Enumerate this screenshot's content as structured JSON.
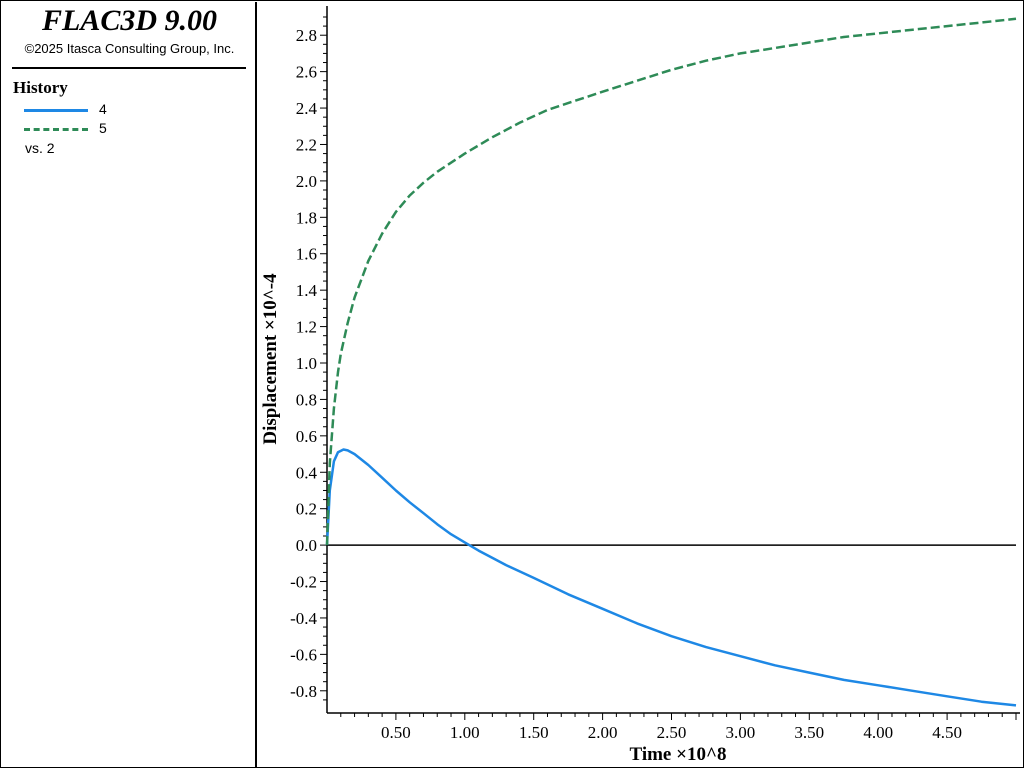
{
  "app": {
    "title": "FLAC3D 9.00",
    "copyright": "©2025 Itasca Consulting Group, Inc."
  },
  "legend": {
    "title": "History",
    "vs_label": "vs. 2",
    "items": [
      {
        "label": "4",
        "color": "#1e88e5",
        "style": "solid"
      },
      {
        "label": "5",
        "color": "#2e8b57",
        "style": "dashed"
      }
    ]
  },
  "chart_data": {
    "type": "line",
    "xlabel": "Time ×10^8",
    "ylabel": "Displacement ×10^-4",
    "xlim": [
      0,
      5.0
    ],
    "ylim": [
      -0.9,
      2.9
    ],
    "xticks": [
      "0.50",
      "1.00",
      "1.50",
      "2.00",
      "2.50",
      "3.00",
      "3.50",
      "4.00",
      "4.50"
    ],
    "yticks": [
      "2.8",
      "2.6",
      "2.4",
      "2.2",
      "2.0",
      "1.8",
      "1.6",
      "1.4",
      "1.2",
      "1.0",
      "0.8",
      "0.6",
      "0.4",
      "0.2",
      "0.0",
      "-0.2",
      "-0.4",
      "-0.6",
      "-0.8"
    ],
    "zero_line": true,
    "grid": false,
    "series": [
      {
        "name": "4",
        "color": "#1e88e5",
        "style": "solid",
        "x": [
          0,
          0.02,
          0.05,
          0.08,
          0.12,
          0.15,
          0.2,
          0.3,
          0.4,
          0.5,
          0.6,
          0.7,
          0.8,
          0.9,
          1.0,
          1.1,
          1.2,
          1.3,
          1.5,
          1.75,
          2.0,
          2.25,
          2.5,
          2.75,
          3.0,
          3.25,
          3.5,
          3.75,
          4.0,
          4.25,
          4.5,
          4.75,
          5.0
        ],
        "values": [
          0,
          0.3,
          0.46,
          0.51,
          0.525,
          0.52,
          0.5,
          0.44,
          0.37,
          0.3,
          0.235,
          0.175,
          0.115,
          0.06,
          0.015,
          -0.03,
          -0.07,
          -0.11,
          -0.18,
          -0.27,
          -0.35,
          -0.43,
          -0.5,
          -0.56,
          -0.61,
          -0.66,
          -0.7,
          -0.74,
          -0.77,
          -0.8,
          -0.83,
          -0.86,
          -0.88
        ]
      },
      {
        "name": "5",
        "color": "#2e8b57",
        "style": "dashed",
        "x": [
          0,
          0.02,
          0.05,
          0.08,
          0.1,
          0.15,
          0.2,
          0.3,
          0.4,
          0.5,
          0.6,
          0.7,
          0.8,
          0.9,
          1.0,
          1.2,
          1.4,
          1.6,
          1.8,
          2.0,
          2.25,
          2.5,
          2.75,
          3.0,
          3.25,
          3.5,
          3.75,
          4.0,
          4.25,
          4.5,
          4.75,
          5.0
        ],
        "values": [
          0,
          0.45,
          0.75,
          0.95,
          1.05,
          1.22,
          1.36,
          1.56,
          1.71,
          1.83,
          1.92,
          1.99,
          2.05,
          2.1,
          2.15,
          2.24,
          2.32,
          2.39,
          2.44,
          2.49,
          2.55,
          2.61,
          2.66,
          2.7,
          2.73,
          2.76,
          2.79,
          2.81,
          2.83,
          2.85,
          2.87,
          2.89
        ]
      }
    ]
  }
}
